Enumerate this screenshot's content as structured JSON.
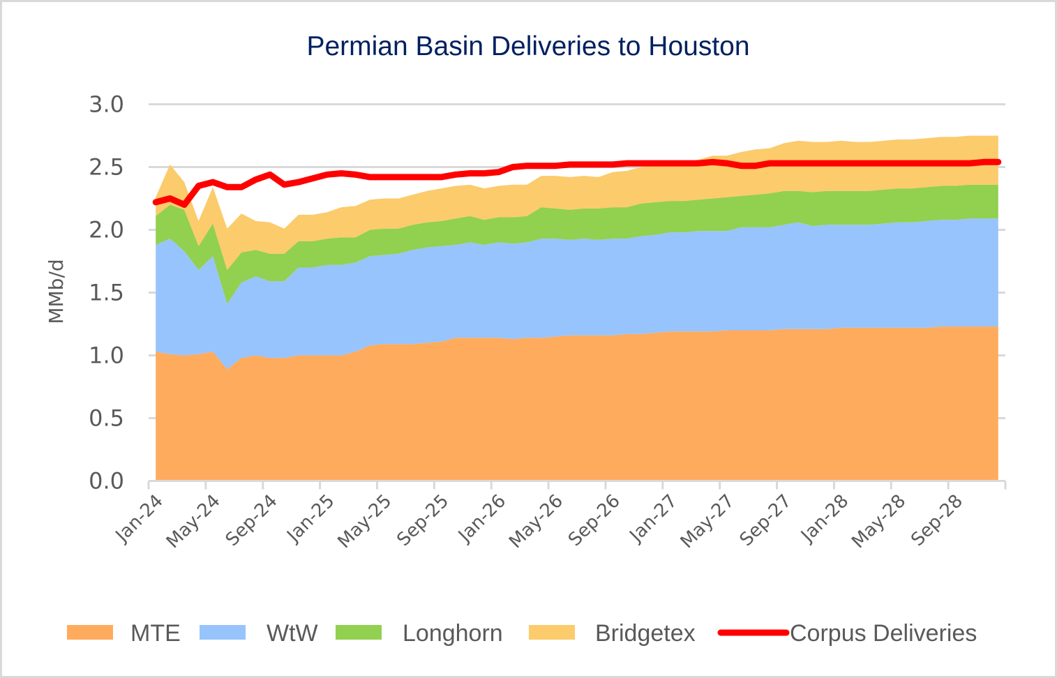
{
  "chart_data": {
    "type": "area",
    "stacked": true,
    "title": "Permian Basin Deliveries to Houston",
    "xlabel": "",
    "ylabel": "MMb/d",
    "ylim": [
      0,
      3.0
    ],
    "yticks": [
      "0.0",
      "0.5",
      "1.0",
      "1.5",
      "2.0",
      "2.5",
      "3.0"
    ],
    "ytick_values": [
      0,
      0.5,
      1.0,
      1.5,
      2.0,
      2.5,
      3.0
    ],
    "grid": true,
    "legend_position": "bottom",
    "x": [
      "Jan-24",
      "Feb-24",
      "Mar-24",
      "Apr-24",
      "May-24",
      "Jun-24",
      "Jul-24",
      "Aug-24",
      "Sep-24",
      "Oct-24",
      "Nov-24",
      "Dec-24",
      "Jan-25",
      "Feb-25",
      "Mar-25",
      "Apr-25",
      "May-25",
      "Jun-25",
      "Jul-25",
      "Aug-25",
      "Sep-25",
      "Oct-25",
      "Nov-25",
      "Dec-25",
      "Jan-26",
      "Feb-26",
      "Mar-26",
      "Apr-26",
      "May-26",
      "Jun-26",
      "Jul-26",
      "Aug-26",
      "Sep-26",
      "Oct-26",
      "Nov-26",
      "Dec-26",
      "Jan-27",
      "Feb-27",
      "Mar-27",
      "Apr-27",
      "May-27",
      "Jun-27",
      "Jul-27",
      "Aug-27",
      "Sep-27",
      "Oct-27",
      "Nov-27",
      "Dec-27",
      "Jan-28",
      "Feb-28",
      "Mar-28",
      "Apr-28",
      "May-28",
      "Jun-28",
      "Jul-28",
      "Aug-28",
      "Sep-28",
      "Oct-28",
      "Nov-28",
      "Dec-28"
    ],
    "xtick_labels": [
      "Jan-24",
      "May-24",
      "Sep-24",
      "Jan-25",
      "May-25",
      "Sep-25",
      "Jan-26",
      "May-26",
      "Sep-26",
      "Jan-27",
      "May-27",
      "Sep-27",
      "Jan-28",
      "May-28",
      "Sep-28"
    ],
    "series": [
      {
        "name": "MTE",
        "kind": "area",
        "color": "#ffab5e",
        "values": [
          1.03,
          1.01,
          1.0,
          1.01,
          1.03,
          0.89,
          0.98,
          1.0,
          0.98,
          0.98,
          1.0,
          1.0,
          1.0,
          1.0,
          1.03,
          1.08,
          1.09,
          1.09,
          1.09,
          1.1,
          1.11,
          1.14,
          1.14,
          1.14,
          1.14,
          1.13,
          1.14,
          1.14,
          1.15,
          1.16,
          1.16,
          1.16,
          1.16,
          1.17,
          1.17,
          1.18,
          1.19,
          1.19,
          1.19,
          1.19,
          1.2,
          1.2,
          1.2,
          1.2,
          1.21,
          1.21,
          1.21,
          1.21,
          1.22,
          1.22,
          1.22,
          1.22,
          1.22,
          1.22,
          1.22,
          1.23,
          1.23,
          1.23,
          1.23,
          1.23
        ]
      },
      {
        "name": "WtW",
        "kind": "area",
        "color": "#97c4fc",
        "values": [
          0.85,
          0.92,
          0.83,
          0.67,
          0.76,
          0.52,
          0.6,
          0.63,
          0.61,
          0.61,
          0.7,
          0.7,
          0.72,
          0.72,
          0.71,
          0.71,
          0.71,
          0.72,
          0.75,
          0.76,
          0.76,
          0.74,
          0.76,
          0.74,
          0.76,
          0.76,
          0.76,
          0.79,
          0.78,
          0.76,
          0.77,
          0.76,
          0.77,
          0.76,
          0.78,
          0.78,
          0.79,
          0.79,
          0.8,
          0.8,
          0.79,
          0.82,
          0.82,
          0.82,
          0.83,
          0.85,
          0.82,
          0.83,
          0.82,
          0.82,
          0.82,
          0.83,
          0.84,
          0.84,
          0.85,
          0.85,
          0.85,
          0.86,
          0.86,
          0.86
        ]
      },
      {
        "name": "Longhorn",
        "kind": "area",
        "color": "#92d050",
        "values": [
          0.23,
          0.27,
          0.33,
          0.19,
          0.26,
          0.27,
          0.24,
          0.21,
          0.22,
          0.22,
          0.21,
          0.21,
          0.21,
          0.22,
          0.2,
          0.21,
          0.21,
          0.2,
          0.2,
          0.2,
          0.2,
          0.21,
          0.21,
          0.2,
          0.2,
          0.21,
          0.21,
          0.25,
          0.24,
          0.24,
          0.24,
          0.25,
          0.25,
          0.25,
          0.26,
          0.26,
          0.25,
          0.25,
          0.25,
          0.26,
          0.27,
          0.25,
          0.26,
          0.27,
          0.27,
          0.25,
          0.27,
          0.27,
          0.27,
          0.27,
          0.27,
          0.27,
          0.27,
          0.27,
          0.27,
          0.27,
          0.27,
          0.27,
          0.27,
          0.27
        ]
      },
      {
        "name": "Bridgetex",
        "kind": "area",
        "color": "#fbcb6c",
        "values": [
          0.15,
          0.32,
          0.22,
          0.2,
          0.29,
          0.33,
          0.31,
          0.23,
          0.25,
          0.2,
          0.21,
          0.21,
          0.21,
          0.24,
          0.25,
          0.24,
          0.24,
          0.24,
          0.24,
          0.25,
          0.26,
          0.26,
          0.25,
          0.25,
          0.25,
          0.26,
          0.25,
          0.25,
          0.26,
          0.26,
          0.26,
          0.25,
          0.28,
          0.29,
          0.29,
          0.3,
          0.3,
          0.31,
          0.32,
          0.34,
          0.33,
          0.35,
          0.36,
          0.36,
          0.38,
          0.4,
          0.4,
          0.39,
          0.4,
          0.39,
          0.39,
          0.39,
          0.39,
          0.39,
          0.39,
          0.39,
          0.39,
          0.39,
          0.39,
          0.39
        ]
      },
      {
        "name": "Corpus Deliveries",
        "kind": "line",
        "color": "#ff0000",
        "values": [
          2.22,
          2.25,
          2.2,
          2.35,
          2.38,
          2.34,
          2.34,
          2.4,
          2.44,
          2.36,
          2.38,
          2.41,
          2.44,
          2.45,
          2.44,
          2.42,
          2.42,
          2.42,
          2.42,
          2.42,
          2.42,
          2.44,
          2.45,
          2.45,
          2.46,
          2.5,
          2.51,
          2.51,
          2.51,
          2.52,
          2.52,
          2.52,
          2.52,
          2.53,
          2.53,
          2.53,
          2.53,
          2.53,
          2.53,
          2.54,
          2.53,
          2.51,
          2.51,
          2.53,
          2.53,
          2.53,
          2.53,
          2.53,
          2.53,
          2.53,
          2.53,
          2.53,
          2.53,
          2.53,
          2.53,
          2.53,
          2.53,
          2.53,
          2.54,
          2.54
        ]
      }
    ]
  }
}
